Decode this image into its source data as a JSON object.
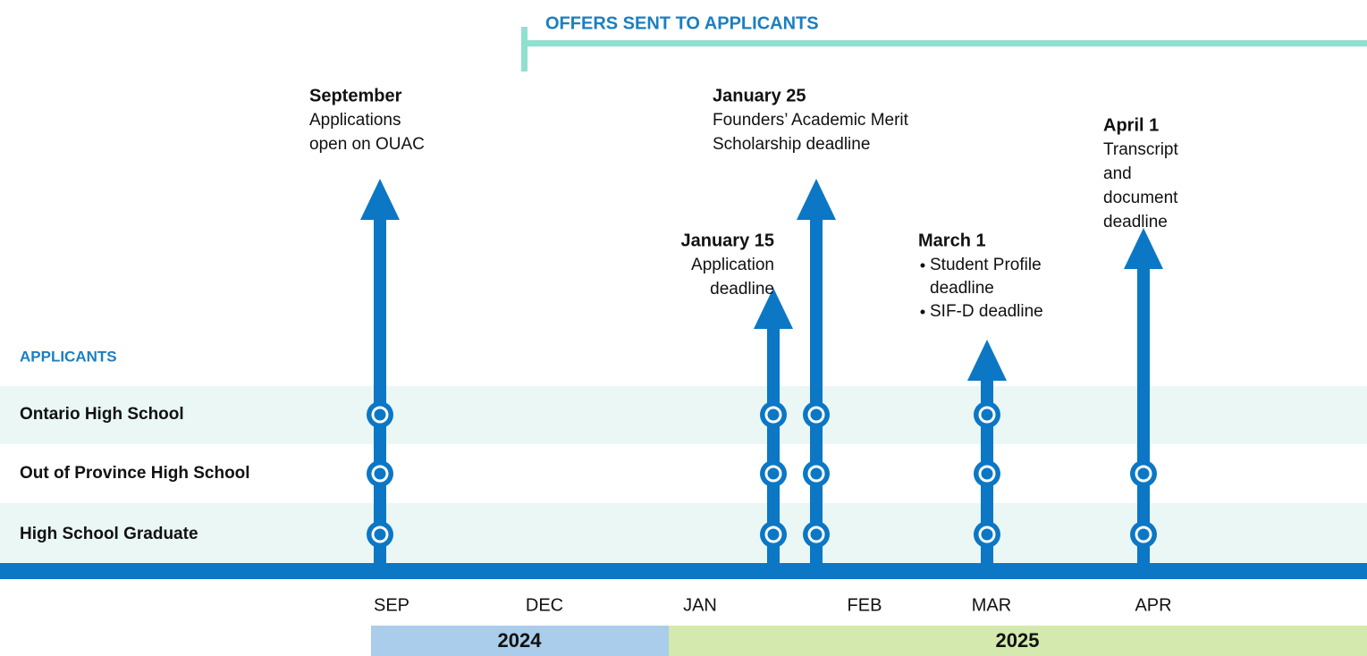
{
  "offers_banner": "OFFERS SENT TO APPLICANTS",
  "applicants_heading": "APPLICANTS",
  "rows": [
    "Ontario High School",
    "Out of Province High School",
    "High School Graduate"
  ],
  "events": [
    {
      "date": "September",
      "lines": [
        "Applications",
        "open on OUAC"
      ]
    },
    {
      "date": "January 15",
      "lines": [
        "Application",
        "deadline"
      ]
    },
    {
      "date": "January 25",
      "lines": [
        "Founders’ Academic Merit",
        "Scholarship deadline"
      ]
    },
    {
      "date": "March 1",
      "items": [
        [
          "Student Profile",
          "deadline"
        ],
        [
          "SIF-D deadline"
        ]
      ]
    },
    {
      "date": "April 1",
      "lines": [
        "Transcript",
        "and",
        "document",
        "deadline"
      ]
    }
  ],
  "months": [
    "SEP",
    "DEC",
    "JAN",
    "FEB",
    "MAR",
    "APR"
  ],
  "years": [
    "2024",
    "2025"
  ]
}
